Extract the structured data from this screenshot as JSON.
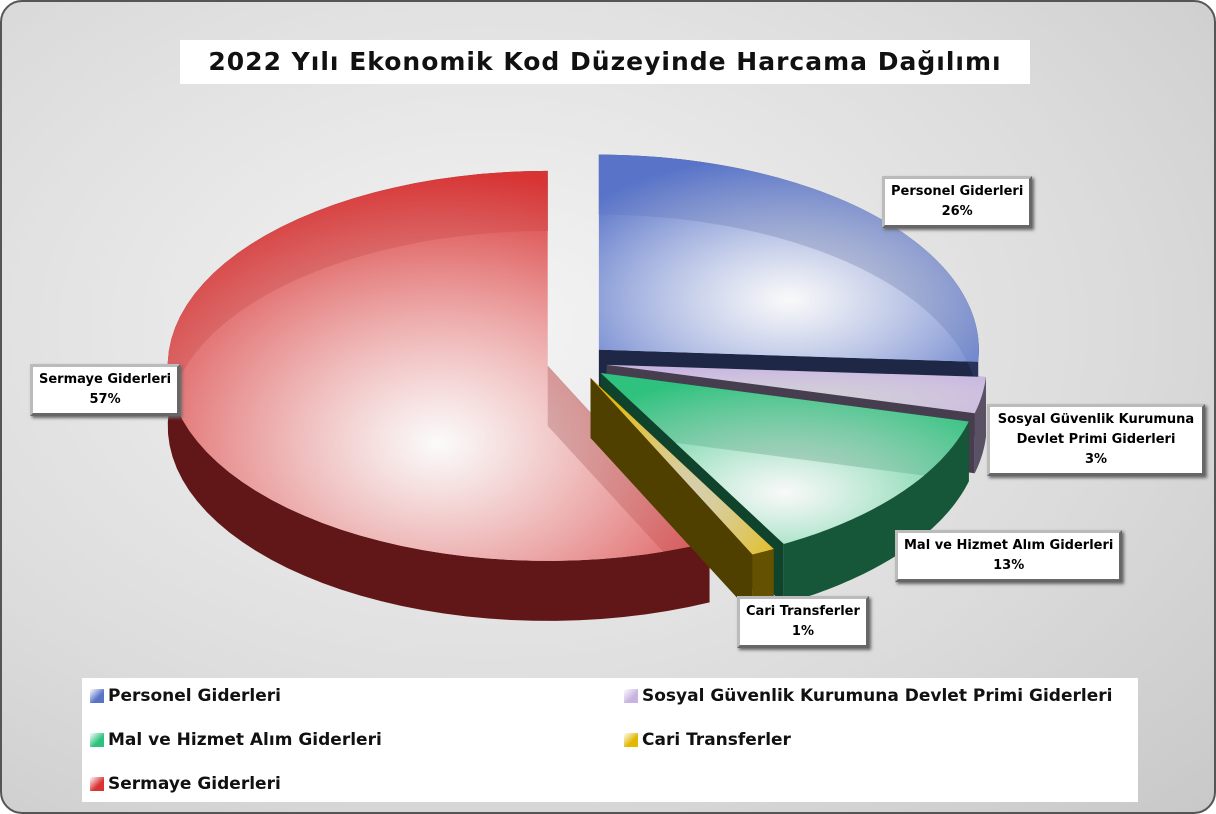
{
  "chart_data": {
    "type": "pie",
    "title": "2022 Yılı Ekonomik Kod Düzeyinde Harcama Dağılımı",
    "categories": [
      "Personel Giderleri",
      "Sosyal Güvenlik Kurumuna Devlet Primi Giderleri",
      "Mal ve Hizmet Alım Giderleri",
      "Cari Transferler",
      "Sermaye Giderleri"
    ],
    "values": [
      26,
      3,
      13,
      1,
      57
    ],
    "value_labels": [
      "26%",
      "3%",
      "13%",
      "1%",
      "57%"
    ],
    "colors": [
      "#5873c8",
      "#c8b4e2",
      "#2fc27e",
      "#e2b800",
      "#d83434"
    ]
  }
}
